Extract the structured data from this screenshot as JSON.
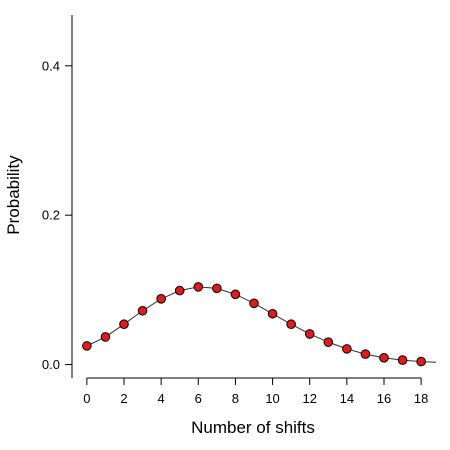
{
  "chart_data": {
    "type": "line",
    "title": "",
    "xlabel": "Number of shifts",
    "ylabel": "Probability",
    "x": [
      0,
      1,
      2,
      3,
      4,
      5,
      6,
      7,
      8,
      9,
      10,
      11,
      12,
      13,
      14,
      15,
      16,
      17,
      18
    ],
    "y": [
      0.025,
      0.037,
      0.054,
      0.072,
      0.088,
      0.099,
      0.104,
      0.102,
      0.094,
      0.082,
      0.068,
      0.054,
      0.041,
      0.03,
      0.021,
      0.014,
      0.009,
      0.006,
      0.004
    ],
    "xlim": [
      -0.8,
      18.8
    ],
    "ylim": [
      -0.018,
      0.468
    ],
    "x_ticks": [
      0,
      2,
      4,
      6,
      8,
      10,
      12,
      14,
      16,
      18
    ],
    "x_tick_labels": [
      "0",
      "2",
      "4",
      "6",
      "8",
      "10",
      "12",
      "14",
      "16",
      "18"
    ],
    "y_ticks": [
      0.0,
      0.2,
      0.4
    ],
    "y_tick_labels": [
      "0.0",
      "0.2",
      "0.4"
    ],
    "grid": false,
    "legend": "none",
    "extended_line_to_x": 18.8,
    "extended_line_y": 0.003,
    "colors": {
      "marker_fill": "#e31a1c",
      "marker_stroke": "#000000",
      "line": "#333333",
      "axis": "#000000"
    }
  }
}
